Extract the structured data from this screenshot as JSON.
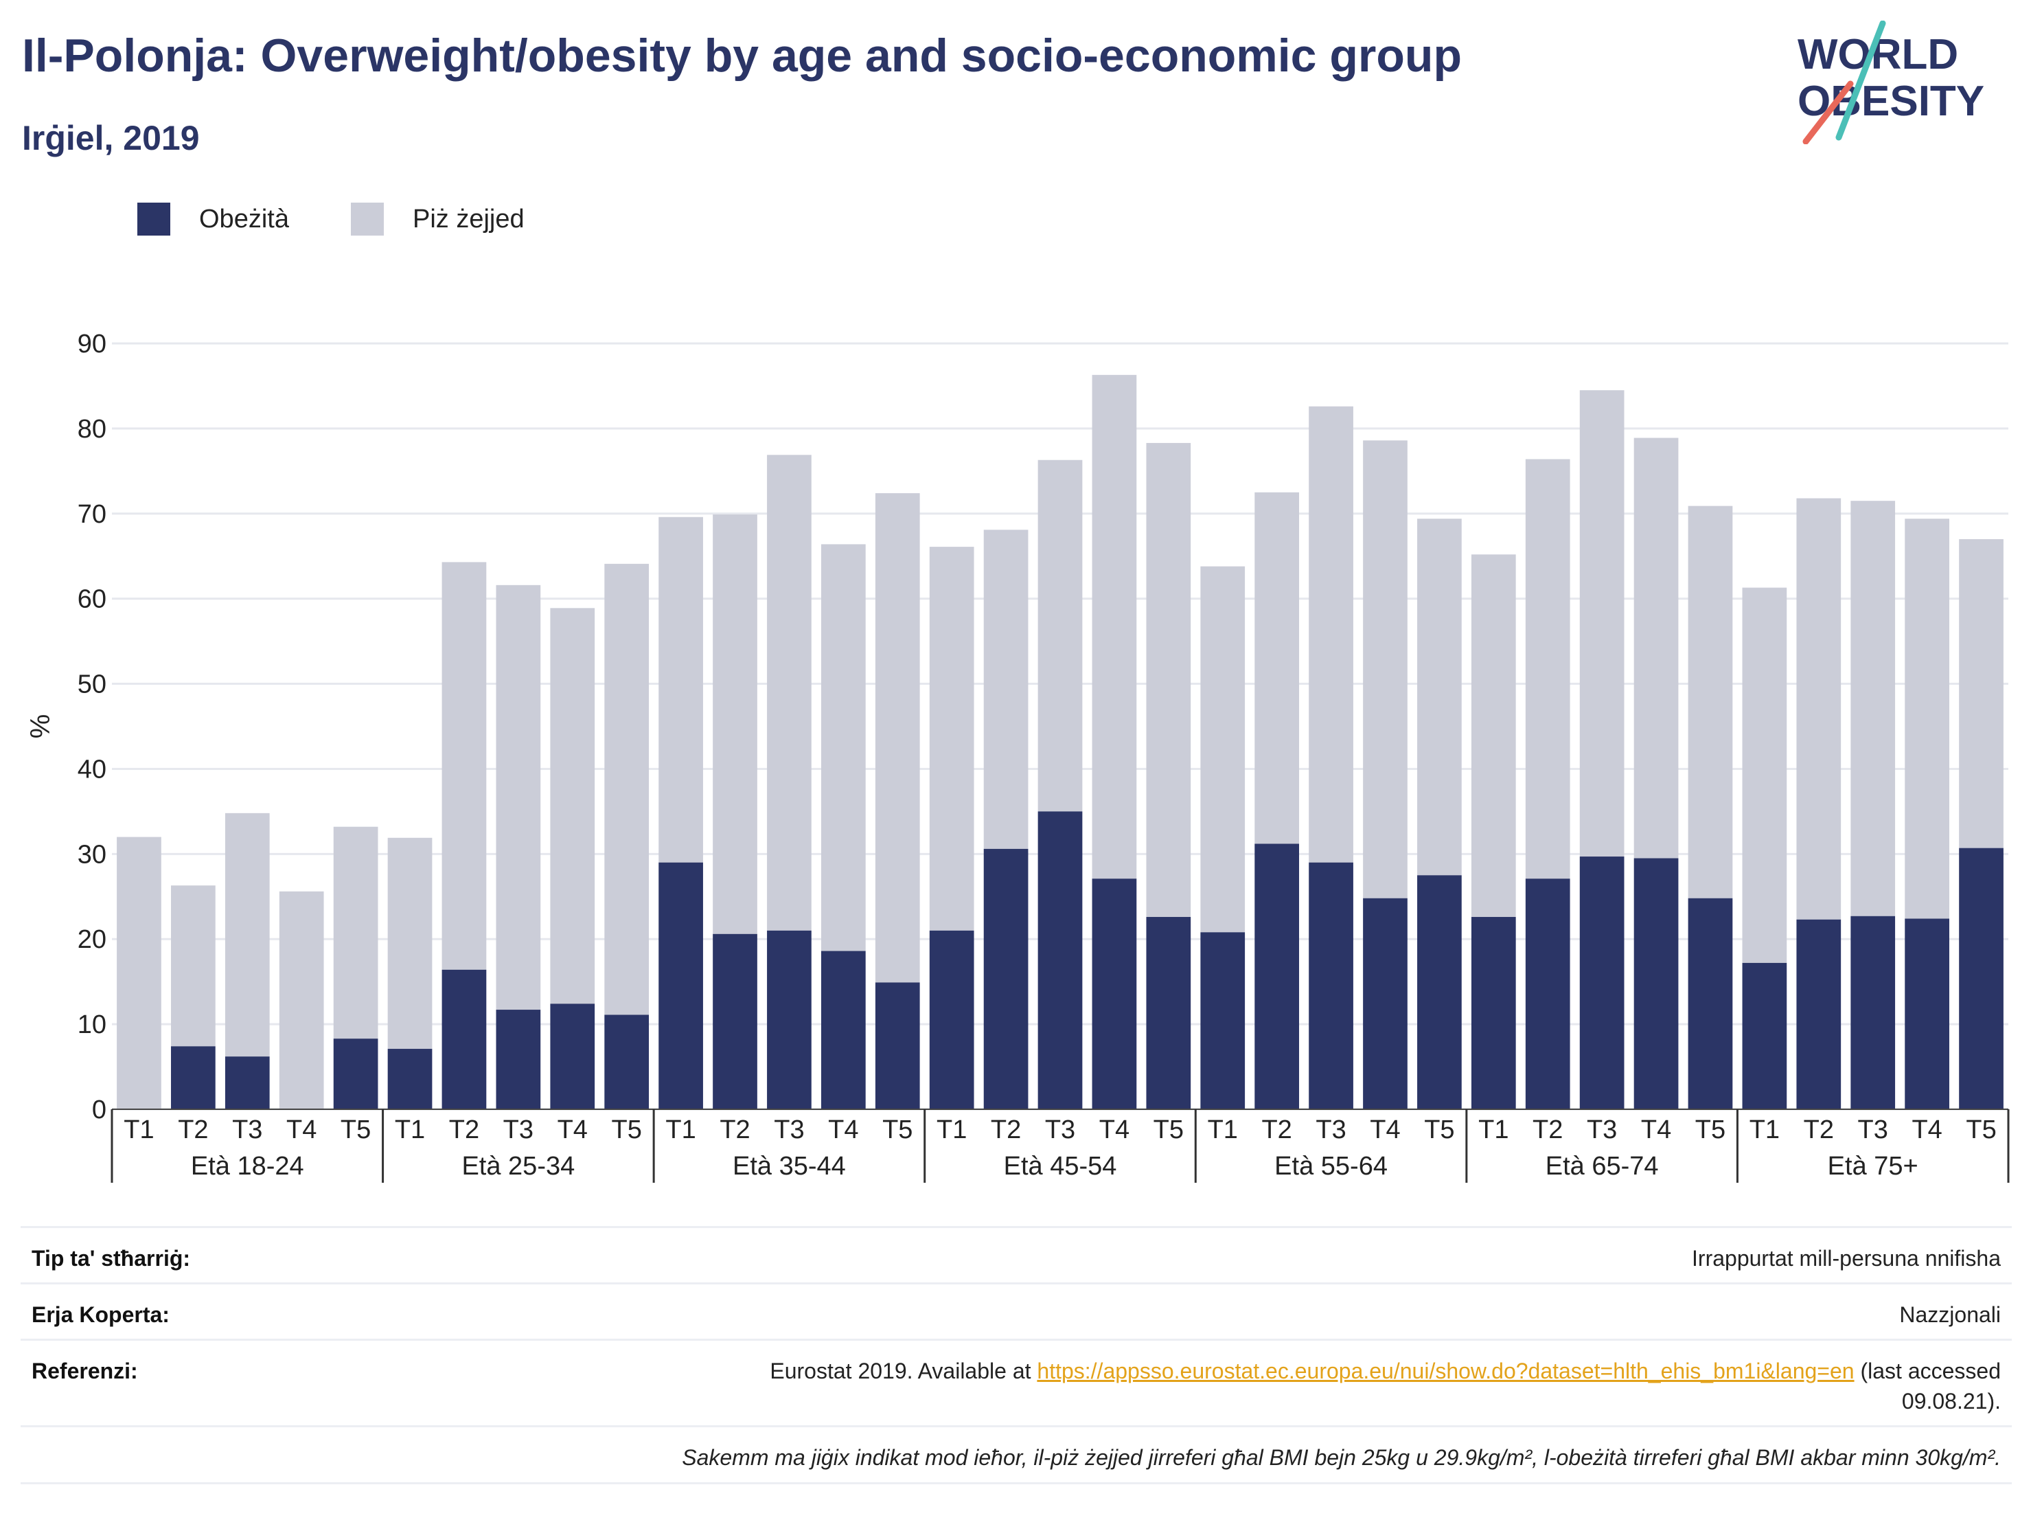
{
  "title": "Il-Polonja: Overweight/obesity by age and socio-economic group",
  "subtitle": "Irġiel, 2019",
  "logo": {
    "line1": "WORLD",
    "line2": "OBESITY"
  },
  "colors": {
    "obesity": "#2b3566",
    "overweight": "#cbcdd8",
    "title": "#2b3566",
    "link": "#e3a21a"
  },
  "chart_data": {
    "type": "bar",
    "stacked": true,
    "ylabel": "%",
    "ylim": [
      0,
      90
    ],
    "yticks": [
      0,
      10,
      20,
      30,
      40,
      50,
      60,
      70,
      80,
      90
    ],
    "grid": true,
    "legend_position": "top-left",
    "groups": [
      "Età 18-24",
      "Età 25-34",
      "Età 35-44",
      "Età 45-54",
      "Età 55-64",
      "Età 65-74",
      "Età 75+"
    ],
    "quintiles": [
      "T1",
      "T2",
      "T3",
      "T4",
      "T5"
    ],
    "series": [
      {
        "name": "Obeżità",
        "color": "#2b3566",
        "values": [
          0,
          7.4,
          6.2,
          0,
          8.3,
          7.1,
          16.4,
          11.7,
          12.4,
          11.1,
          29.0,
          20.6,
          21.0,
          18.6,
          14.9,
          21.0,
          30.6,
          35.0,
          27.1,
          22.6,
          20.8,
          31.2,
          29.0,
          24.8,
          27.5,
          22.6,
          27.1,
          29.7,
          29.5,
          24.8,
          17.2,
          22.3,
          22.7,
          22.4,
          30.7
        ]
      },
      {
        "name": "Piż żejjed",
        "color": "#cbcdd8",
        "values": [
          32.0,
          18.9,
          28.6,
          25.6,
          24.9,
          24.8,
          47.9,
          49.9,
          46.5,
          53.0,
          40.6,
          49.3,
          55.9,
          47.8,
          57.5,
          45.1,
          37.5,
          41.3,
          59.2,
          55.7,
          43.0,
          41.3,
          53.6,
          53.8,
          41.9,
          42.6,
          49.3,
          54.8,
          49.4,
          46.1,
          44.1,
          49.5,
          48.8,
          47.0,
          36.3
        ]
      }
    ]
  },
  "meta": {
    "rows": [
      {
        "label": "Tip ta' stħarriġ:",
        "value": "Irrappurtat mill-persuna nnifisha"
      },
      {
        "label": "Erja Koperta:",
        "value": "Nazzjonali"
      }
    ],
    "reference": {
      "label": "Referenzi:",
      "prefix": "Eurostat 2019. Available at ",
      "link": "https://appsso.eurostat.ec.europa.eu/nui/show.do?dataset=hlth_ehis_bm1i&lang=en",
      "suffix": " (last accessed",
      "line2": "09.08.21)."
    },
    "note": "Sakemm ma jiġix indikat mod ieħor, il-piż żejjed jirreferi għal BMI bejn 25kg u 29.9kg/m², l-obeżità tirreferi għal BMI akbar minn 30kg/m²."
  }
}
